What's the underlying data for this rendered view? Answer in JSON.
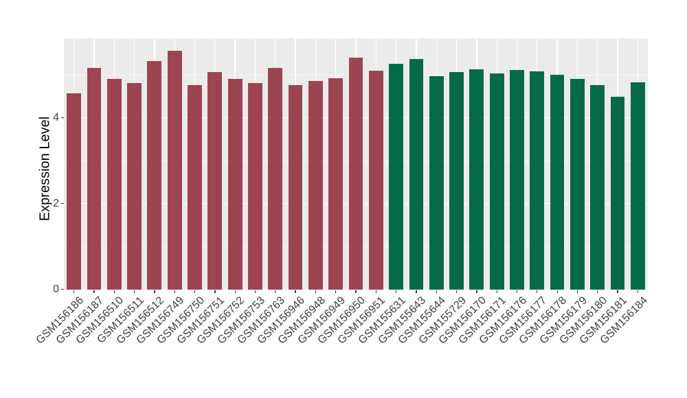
{
  "figure": {
    "background": "#FFFFFF"
  },
  "chart_data": {
    "type": "bar",
    "title": "",
    "xlabel": "",
    "ylabel": "Expression Level",
    "ylim": [
      0,
      5.85
    ],
    "yticks": [
      0,
      2,
      4
    ],
    "yticks_minor": [
      1,
      3,
      5
    ],
    "grid": "on",
    "legend": "none",
    "panel_background": "#EBEBEB",
    "gridline_color": "#FFFFFF",
    "categories": [
      "GSM156186",
      "GSM156187",
      "GSM156510",
      "GSM156511",
      "GSM156512",
      "GSM156749",
      "GSM156750",
      "GSM156751",
      "GSM156752",
      "GSM156753",
      "GSM156763",
      "GSM156946",
      "GSM156948",
      "GSM156949",
      "GSM156950",
      "GSM156951",
      "GSM155631",
      "GSM155643",
      "GSM155644",
      "GSM155729",
      "GSM156170",
      "GSM156171",
      "GSM156176",
      "GSM156177",
      "GSM156178",
      "GSM156179",
      "GSM156180",
      "GSM156181",
      "GSM156184"
    ],
    "values": [
      4.57,
      5.17,
      4.91,
      4.81,
      5.32,
      5.56,
      4.77,
      5.06,
      4.91,
      4.81,
      5.17,
      4.77,
      4.86,
      4.92,
      5.41,
      5.1,
      5.26,
      5.37,
      4.97,
      5.06,
      5.13,
      5.03,
      5.11,
      5.09,
      5.01,
      4.9,
      4.77,
      4.49,
      4.83
    ],
    "groups": [
      "maroon",
      "maroon",
      "maroon",
      "maroon",
      "maroon",
      "maroon",
      "maroon",
      "maroon",
      "maroon",
      "maroon",
      "maroon",
      "maroon",
      "maroon",
      "maroon",
      "maroon",
      "maroon",
      "green",
      "green",
      "green",
      "green",
      "green",
      "green",
      "green",
      "green",
      "green",
      "green",
      "green",
      "green",
      "green"
    ],
    "group_colors": {
      "maroon": "#9D4452",
      "green": "#066A4A"
    }
  },
  "axis": {
    "tick_mark_color": "#333333",
    "tick_text_color": "#404040"
  }
}
